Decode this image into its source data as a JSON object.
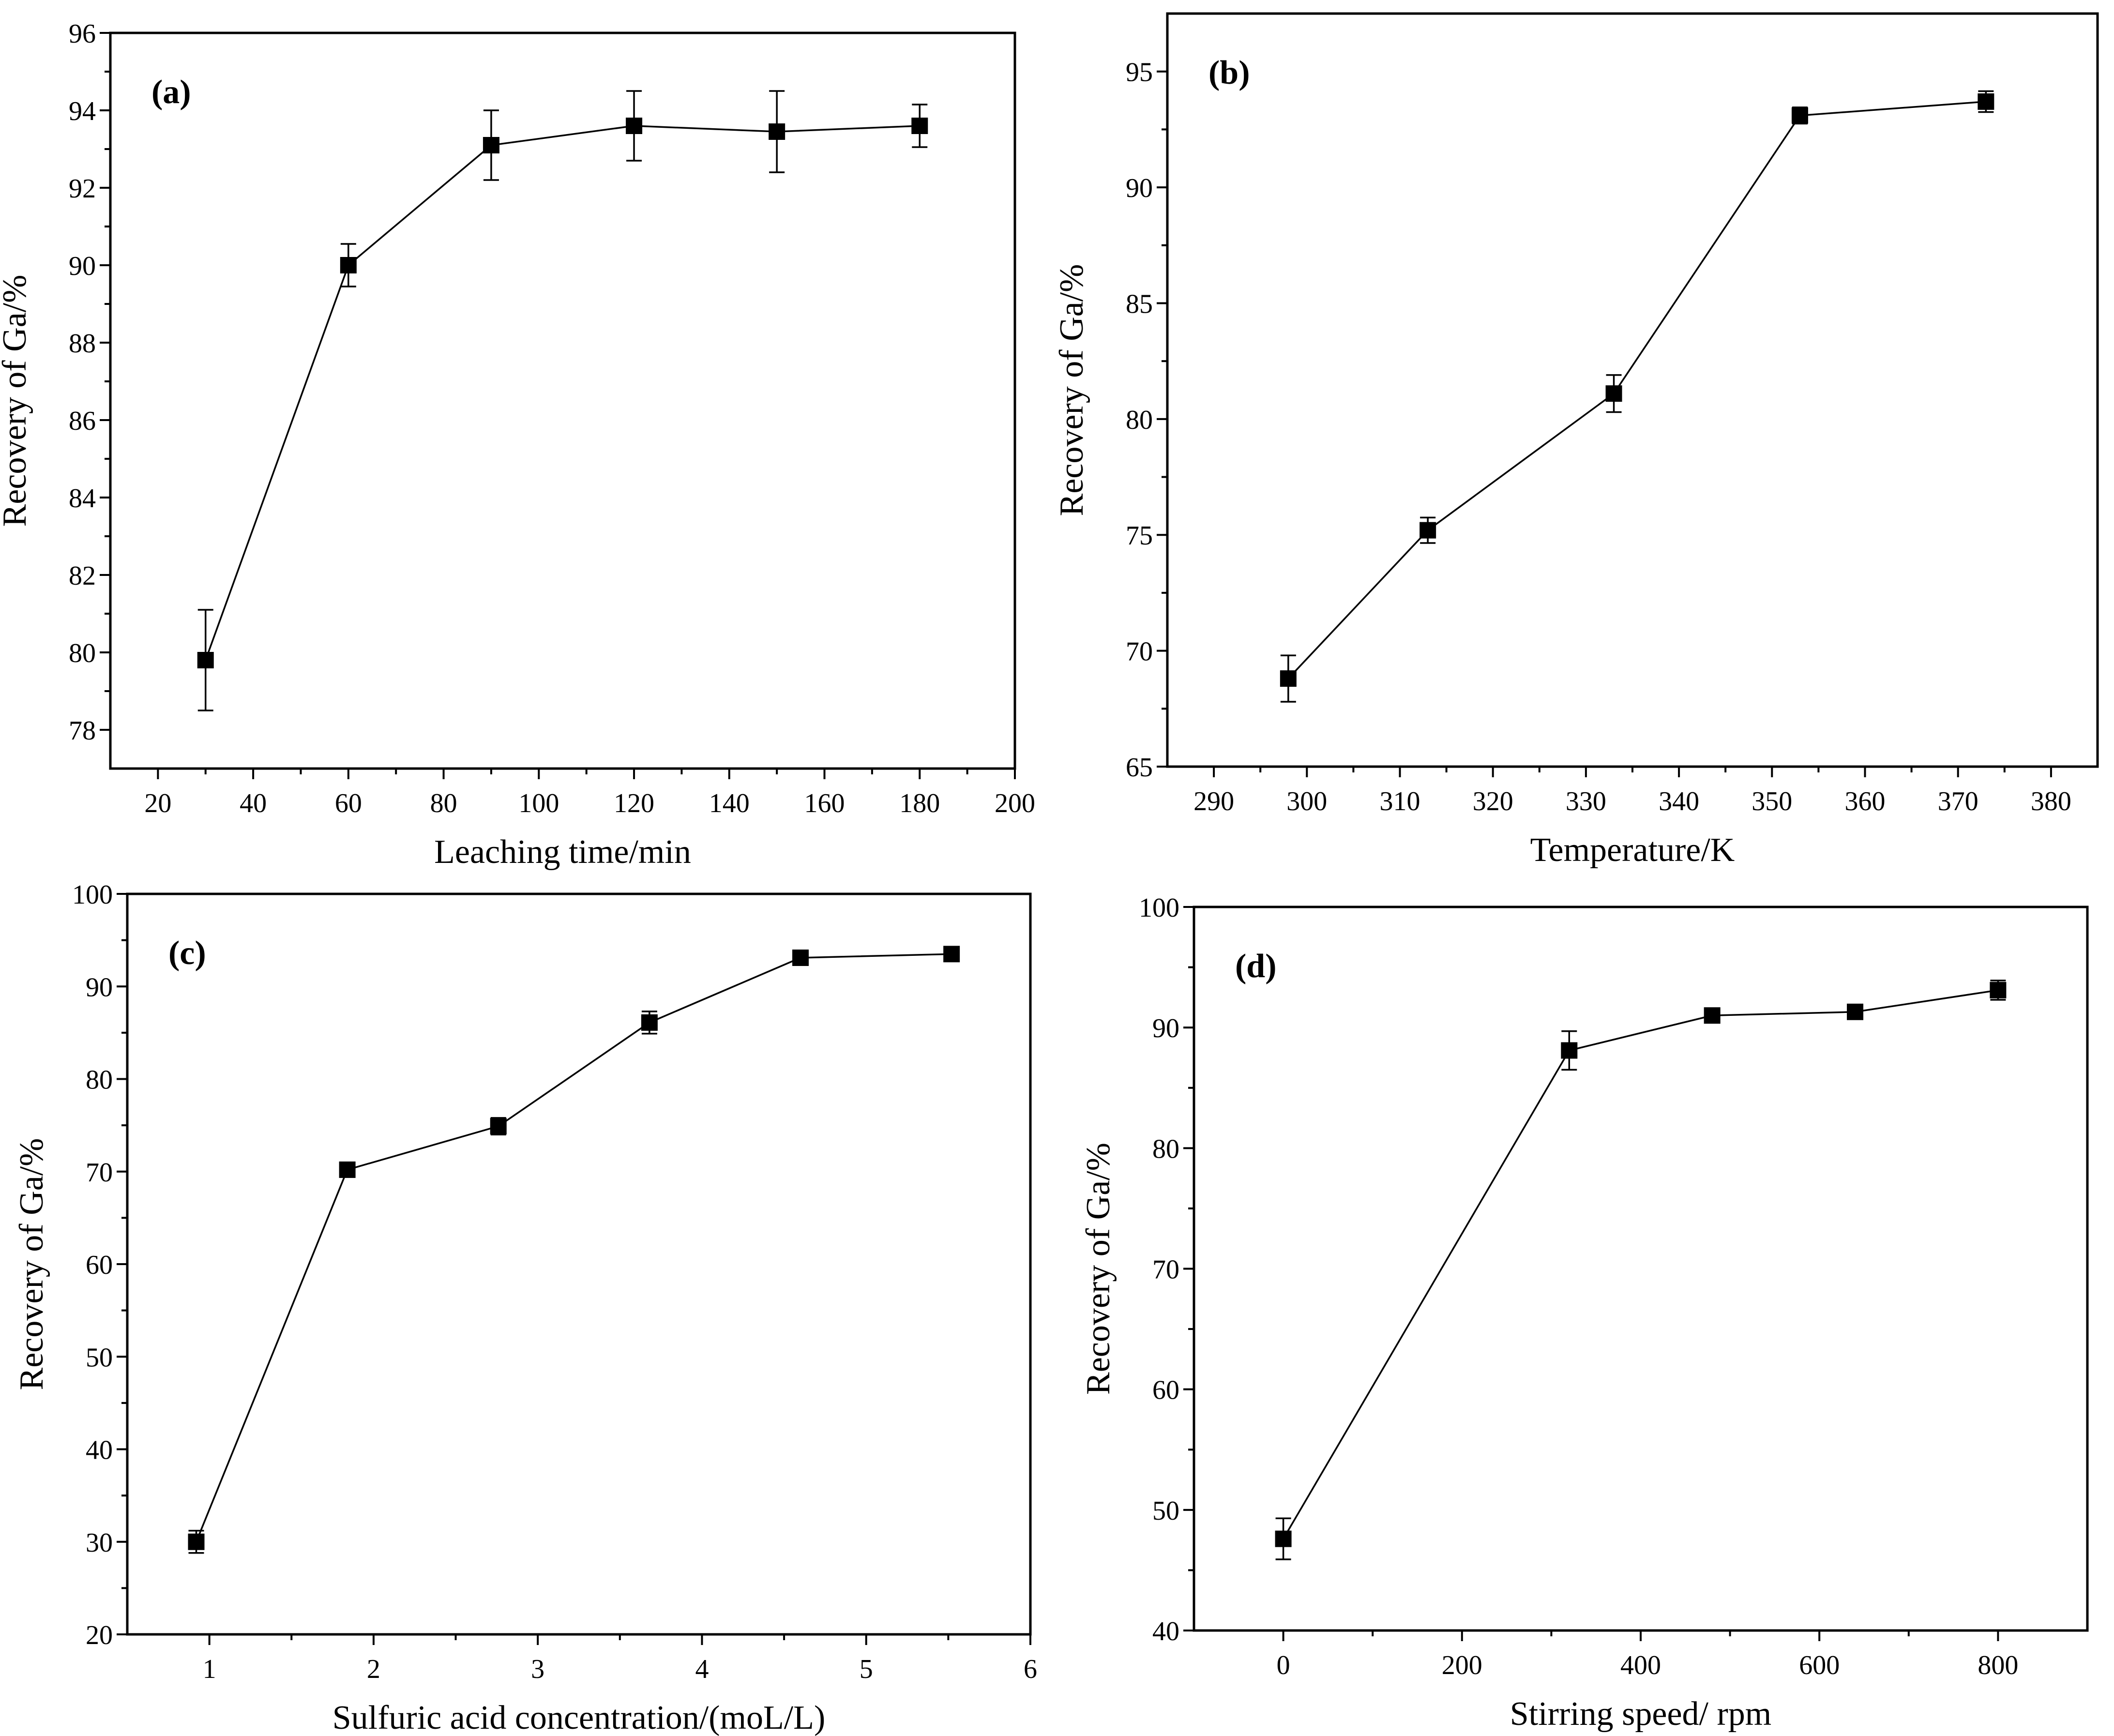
{
  "chart_data": [
    {
      "type": "line",
      "panel_label": "(a)",
      "xlabel": "Leaching time/min",
      "ylabel": "Recovery of Ga/%",
      "xlim": [
        10,
        200
      ],
      "ylim": [
        77,
        96
      ],
      "xticks": [
        20,
        40,
        60,
        80,
        100,
        120,
        140,
        160,
        180,
        200
      ],
      "yticks": [
        78,
        80,
        82,
        84,
        86,
        88,
        90,
        92,
        94,
        96
      ],
      "marker_color": "#000000",
      "series": [
        {
          "name": "Recovery of Ga",
          "x": [
            30,
            60,
            90,
            120,
            150,
            180
          ],
          "y": [
            79.8,
            90.0,
            93.1,
            93.6,
            93.45,
            93.6
          ],
          "err": [
            1.3,
            0.55,
            0.9,
            0.9,
            1.05,
            0.55
          ]
        }
      ]
    },
    {
      "type": "line",
      "panel_label": "(b)",
      "xlabel": "Temperature/K",
      "ylabel": "Recovery of Ga/%",
      "xlim": [
        285,
        385
      ],
      "ylim": [
        65,
        97.5
      ],
      "xticks": [
        290,
        300,
        310,
        320,
        330,
        340,
        350,
        360,
        370,
        380
      ],
      "yticks": [
        65,
        70,
        75,
        80,
        85,
        90,
        95
      ],
      "marker_color": "#000000",
      "series": [
        {
          "name": "Recovery of Ga",
          "x": [
            298,
            313,
            333,
            353,
            373
          ],
          "y": [
            68.8,
            75.2,
            81.1,
            93.1,
            93.7
          ],
          "err": [
            1.0,
            0.55,
            0.8,
            0.35,
            0.45
          ]
        }
      ]
    },
    {
      "type": "line",
      "panel_label": "(c)",
      "xlabel": "Sulfuric acid concentration/(moL/L)",
      "ylabel": "Recovery of Ga/%",
      "xlim": [
        0.5,
        6
      ],
      "ylim": [
        20,
        100
      ],
      "xticks": [
        1,
        2,
        3,
        4,
        5,
        6
      ],
      "yticks": [
        20,
        30,
        40,
        50,
        60,
        70,
        80,
        90,
        100
      ],
      "marker_color": "#000000",
      "series": [
        {
          "name": "Recovery of Ga",
          "x": [
            0.92,
            1.84,
            2.76,
            3.68,
            4.6,
            5.52
          ],
          "y": [
            30.0,
            70.2,
            74.9,
            86.1,
            93.1,
            93.5
          ],
          "err": [
            1.2,
            0.3,
            0.9,
            1.2,
            0.3,
            0.3
          ]
        }
      ]
    },
    {
      "type": "line",
      "panel_label": "(d)",
      "xlabel": "Stirring speed/ rpm",
      "ylabel": "Recovery of Ga/%",
      "xlim": [
        -100,
        900
      ],
      "ylim": [
        40,
        100
      ],
      "xticks": [
        0,
        200,
        400,
        600,
        800
      ],
      "yticks": [
        40,
        50,
        60,
        70,
        80,
        90,
        100
      ],
      "marker_color": "#000000",
      "series": [
        {
          "name": "Recovery of Ga",
          "x": [
            0,
            320,
            480,
            640,
            800
          ],
          "y": [
            47.6,
            88.1,
            91.0,
            91.3,
            93.1
          ],
          "err": [
            1.7,
            1.6,
            0.3,
            0.3,
            0.8
          ]
        }
      ]
    }
  ]
}
